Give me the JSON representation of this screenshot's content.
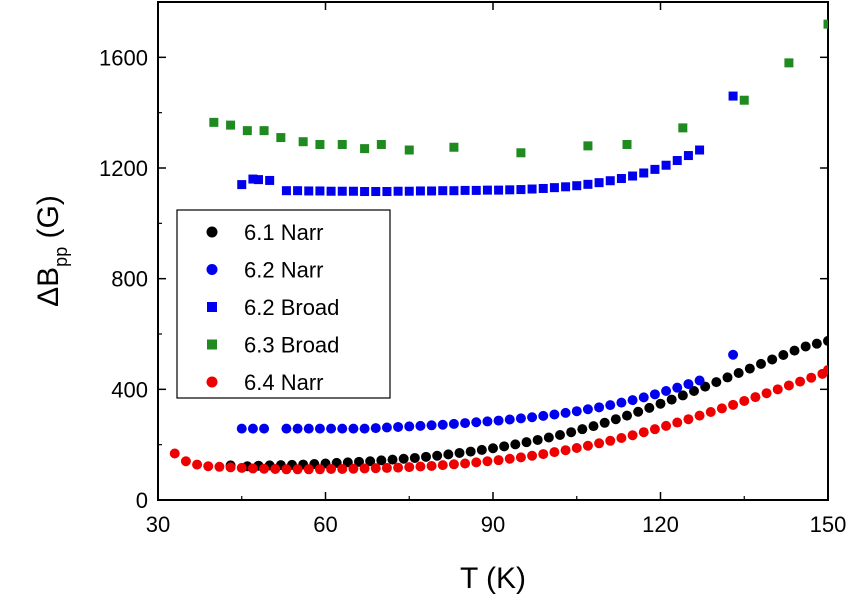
{
  "chart_data": {
    "type": "scatter",
    "xlabel": "T (K)",
    "ylabel": "ΔB",
    "ylabel_sub": "pp",
    "ylabel_unit": " (G)",
    "xlim": [
      30,
      150
    ],
    "ylim": [
      0,
      1800
    ],
    "xticks": [
      30,
      60,
      90,
      120,
      150
    ],
    "yticks": [
      0,
      400,
      800,
      1200,
      1600
    ],
    "legend_position": "left-middle",
    "series": [
      {
        "name": "6.1 Narr",
        "marker": "circle",
        "color": "#000000",
        "x": [
          43,
          46,
          48,
          50,
          52,
          54,
          56,
          58,
          60,
          62,
          64,
          66,
          68,
          70,
          72,
          74,
          76,
          78,
          80,
          82,
          84,
          86,
          88,
          90,
          92,
          94,
          96,
          98,
          100,
          102,
          104,
          106,
          108,
          110,
          112,
          114,
          116,
          118,
          120,
          122,
          124,
          126,
          128,
          130,
          132,
          134,
          136,
          138,
          140,
          142,
          144,
          146,
          148,
          150
        ],
        "y": [
          125,
          122,
          124,
          125,
          126,
          127,
          128,
          130,
          132,
          134,
          136,
          138,
          140,
          143,
          146,
          149,
          152,
          156,
          160,
          165,
          170,
          175,
          181,
          187,
          194,
          201,
          209,
          217,
          226,
          235,
          245,
          256,
          267,
          279,
          292,
          305,
          319,
          333,
          348,
          363,
          378,
          394,
          410,
          426,
          443,
          459,
          475,
          492,
          508,
          524,
          540,
          555,
          565,
          575
        ]
      },
      {
        "name": "6.2 Narr",
        "marker": "circle",
        "color": "#0000ee",
        "x": [
          45,
          47,
          49,
          53,
          55,
          57,
          59,
          61,
          63,
          65,
          67,
          69,
          71,
          73,
          75,
          77,
          79,
          81,
          83,
          85,
          87,
          89,
          91,
          93,
          95,
          97,
          99,
          101,
          103,
          105,
          107,
          109,
          111,
          113,
          115,
          117,
          119,
          121,
          123,
          125,
          127,
          133
        ],
        "y": [
          258,
          258,
          258,
          258,
          258,
          258,
          258,
          258,
          258,
          258,
          258,
          260,
          262,
          264,
          266,
          268,
          270,
          272,
          275,
          278,
          281,
          284,
          287,
          291,
          295,
          299,
          304,
          309,
          315,
          321,
          328,
          335,
          343,
          352,
          361,
          371,
          382,
          394,
          406,
          419,
          432,
          525
        ]
      },
      {
        "name": "6.2 Broad",
        "marker": "square",
        "color": "#0000ee",
        "x": [
          45,
          47,
          48,
          50,
          53,
          55,
          57,
          59,
          61,
          63,
          65,
          67,
          69,
          71,
          73,
          75,
          77,
          79,
          81,
          83,
          85,
          87,
          89,
          91,
          93,
          95,
          97,
          99,
          101,
          103,
          105,
          107,
          109,
          111,
          113,
          115,
          117,
          119,
          121,
          123,
          125,
          127,
          133
        ],
        "y": [
          1140,
          1160,
          1158,
          1155,
          1118,
          1118,
          1117,
          1117,
          1116,
          1116,
          1116,
          1115,
          1115,
          1115,
          1116,
          1116,
          1117,
          1117,
          1118,
          1118,
          1119,
          1119,
          1120,
          1120,
          1121,
          1122,
          1124,
          1126,
          1129,
          1132,
          1136,
          1141,
          1147,
          1154,
          1162,
          1171,
          1182,
          1195,
          1210,
          1227,
          1245,
          1265,
          1460
        ]
      },
      {
        "name": "6.3 Broad",
        "marker": "square",
        "color": "#1f8a1f",
        "x": [
          40,
          43,
          46,
          49,
          52,
          56,
          59,
          63,
          67,
          70,
          75,
          83,
          95,
          107,
          114,
          124,
          135,
          143,
          150
        ],
        "y": [
          1365,
          1355,
          1335,
          1335,
          1310,
          1295,
          1285,
          1285,
          1270,
          1285,
          1265,
          1275,
          1255,
          1280,
          1285,
          1345,
          1445,
          1580,
          1720
        ]
      },
      {
        "name": "6.4 Narr",
        "marker": "circle",
        "color": "#ee0000",
        "x": [
          33,
          35,
          37,
          39,
          41,
          43,
          45,
          47,
          49,
          51,
          53,
          55,
          57,
          59,
          61,
          63,
          65,
          67,
          69,
          71,
          73,
          75,
          77,
          79,
          81,
          83,
          85,
          87,
          89,
          91,
          93,
          95,
          97,
          99,
          101,
          103,
          105,
          107,
          109,
          111,
          113,
          115,
          117,
          119,
          121,
          123,
          125,
          127,
          129,
          131,
          133,
          135,
          137,
          139,
          141,
          143,
          145,
          147,
          149,
          150
        ],
        "y": [
          168,
          140,
          128,
          122,
          120,
          118,
          116,
          114,
          113,
          112,
          111,
          111,
          111,
          111,
          112,
          112,
          113,
          114,
          115,
          116,
          117,
          119,
          121,
          123,
          126,
          129,
          132,
          136,
          140,
          144,
          149,
          154,
          160,
          166,
          173,
          180,
          188,
          196,
          205,
          214,
          224,
          234,
          245,
          256,
          268,
          280,
          292,
          305,
          318,
          331,
          344,
          358,
          372,
          386,
          400,
          414,
          428,
          442,
          456,
          470
        ]
      }
    ]
  }
}
